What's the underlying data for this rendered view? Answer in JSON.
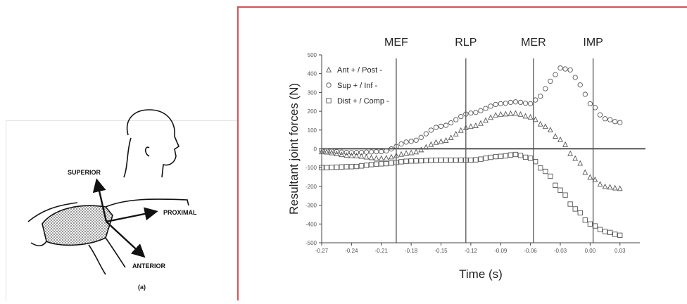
{
  "figure": {
    "panel_label": "(a)",
    "directions": {
      "superior": "SUPERIOR",
      "proximal": "PROXIMAL",
      "anterior": "ANTERIOR"
    },
    "icons": [
      "arm-shoulder-sketch-icon",
      "head-outline-icon"
    ]
  },
  "chart_data": {
    "type": "scatter",
    "xlabel": "Time (s)",
    "ylabel": "Resultant joint forces (N)",
    "xlim": [
      -0.27,
      0.05
    ],
    "ylim": [
      -500,
      500
    ],
    "x_ticks": [
      "-0.27",
      "-0.24",
      "-0.21",
      "-0.18",
      "-0.15",
      "-0.12",
      "-0.09",
      "-0.06",
      "-0.03",
      "0.00",
      "0.03"
    ],
    "y_ticks": [
      "500",
      "400",
      "300",
      "200",
      "100",
      "0",
      "-100",
      "-200",
      "-300",
      "-400",
      "-500"
    ],
    "events": [
      {
        "label": "MEF",
        "x": -0.195
      },
      {
        "label": "RLP",
        "x": -0.125
      },
      {
        "label": "MER",
        "x": -0.057
      },
      {
        "label": "IMP",
        "x": 0.003
      }
    ],
    "legend": [
      {
        "marker": "triangle",
        "text": "Ant + / Post -"
      },
      {
        "marker": "circle",
        "text": "Sup + / Inf -"
      },
      {
        "marker": "square",
        "text": "Dist + / Comp -"
      }
    ],
    "series": [
      {
        "name": "Ant + / Post -",
        "marker": "triangle",
        "x": [
          -0.27,
          -0.24,
          -0.21,
          -0.18,
          -0.15,
          -0.12,
          -0.09,
          -0.075,
          -0.06,
          -0.045,
          -0.03,
          -0.015,
          0.0,
          0.015,
          0.03
        ],
        "y": [
          -15,
          -35,
          -50,
          -20,
          40,
          120,
          185,
          190,
          170,
          120,
          50,
          -50,
          -150,
          -200,
          -210
        ]
      },
      {
        "name": "Sup + / Inf -",
        "marker": "circle",
        "x": [
          -0.27,
          -0.24,
          -0.21,
          -0.18,
          -0.15,
          -0.12,
          -0.09,
          -0.075,
          -0.06,
          -0.05,
          -0.04,
          -0.03,
          -0.02,
          -0.01,
          0.0,
          0.015,
          0.03
        ],
        "y": [
          -10,
          -20,
          -15,
          40,
          120,
          190,
          240,
          250,
          240,
          280,
          360,
          430,
          420,
          340,
          240,
          160,
          140
        ]
      },
      {
        "name": "Dist + / Comp -",
        "marker": "square",
        "x": [
          -0.27,
          -0.24,
          -0.21,
          -0.18,
          -0.15,
          -0.12,
          -0.09,
          -0.075,
          -0.06,
          -0.045,
          -0.03,
          -0.015,
          0.0,
          0.015,
          0.03
        ],
        "y": [
          -100,
          -95,
          -80,
          -65,
          -60,
          -60,
          -40,
          -30,
          -50,
          -120,
          -220,
          -320,
          -400,
          -440,
          -460
        ]
      }
    ]
  }
}
